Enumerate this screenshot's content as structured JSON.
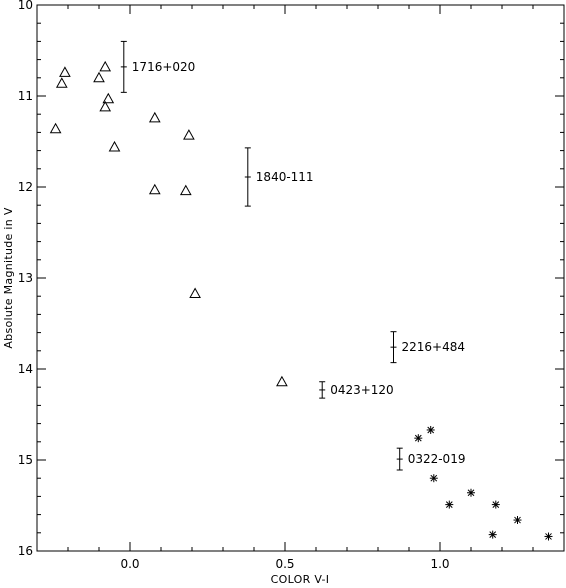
{
  "chart_data": {
    "type": "scatter",
    "xlabel": "COLOR V-I",
    "ylabel": "Absolute Magnitude in V",
    "xlim": [
      -0.3,
      1.4
    ],
    "ylim": [
      10,
      16
    ],
    "y_inverted": true,
    "grid": false,
    "x_ticks": [
      {
        "value": 0.0,
        "label": "0.0"
      },
      {
        "value": 0.5,
        "label": "0.5"
      },
      {
        "value": 1.0,
        "label": "1.0"
      }
    ],
    "y_ticks": [
      {
        "value": 10,
        "label": "10"
      },
      {
        "value": 11,
        "label": "11"
      },
      {
        "value": 12,
        "label": "12"
      },
      {
        "value": 13,
        "label": "13"
      },
      {
        "value": 14,
        "label": "14"
      },
      {
        "value": 15,
        "label": "15"
      },
      {
        "value": 16,
        "label": "16"
      }
    ],
    "series": [
      {
        "marker": "triangle",
        "points": [
          {
            "x": -0.21,
            "y": 10.74
          },
          {
            "x": -0.22,
            "y": 10.86
          },
          {
            "x": -0.24,
            "y": 11.36
          },
          {
            "x": -0.1,
            "y": 10.8
          },
          {
            "x": -0.08,
            "y": 10.68
          },
          {
            "x": -0.07,
            "y": 11.03
          },
          {
            "x": -0.08,
            "y": 11.12
          },
          {
            "x": -0.05,
            "y": 11.56
          },
          {
            "x": 0.08,
            "y": 11.24
          },
          {
            "x": 0.19,
            "y": 11.43
          },
          {
            "x": 0.08,
            "y": 12.03
          },
          {
            "x": 0.18,
            "y": 12.04
          },
          {
            "x": 0.21,
            "y": 13.17
          },
          {
            "x": 0.49,
            "y": 14.14
          }
        ]
      },
      {
        "marker": "asterisk",
        "points": [
          {
            "x": 0.93,
            "y": 14.76
          },
          {
            "x": 0.97,
            "y": 14.67
          },
          {
            "x": 0.98,
            "y": 15.2
          },
          {
            "x": 1.03,
            "y": 15.49
          },
          {
            "x": 1.1,
            "y": 15.36
          },
          {
            "x": 1.17,
            "y": 15.82
          },
          {
            "x": 1.18,
            "y": 15.49
          },
          {
            "x": 1.25,
            "y": 15.66
          },
          {
            "x": 1.35,
            "y": 15.84
          }
        ]
      },
      {
        "marker": "errorbar",
        "points": [
          {
            "x": -0.02,
            "y": 10.68,
            "yerr": 0.28,
            "label": "1716+020"
          },
          {
            "x": 0.38,
            "y": 11.89,
            "yerr": 0.32,
            "label": "1840-111"
          },
          {
            "x": 0.85,
            "y": 13.76,
            "yerr": 0.17,
            "label": "2216+484"
          },
          {
            "x": 0.62,
            "y": 14.23,
            "yerr": 0.09,
            "label": "0423+120"
          },
          {
            "x": 0.87,
            "y": 14.99,
            "yerr": 0.12,
            "label": "0322-019"
          }
        ]
      }
    ]
  }
}
